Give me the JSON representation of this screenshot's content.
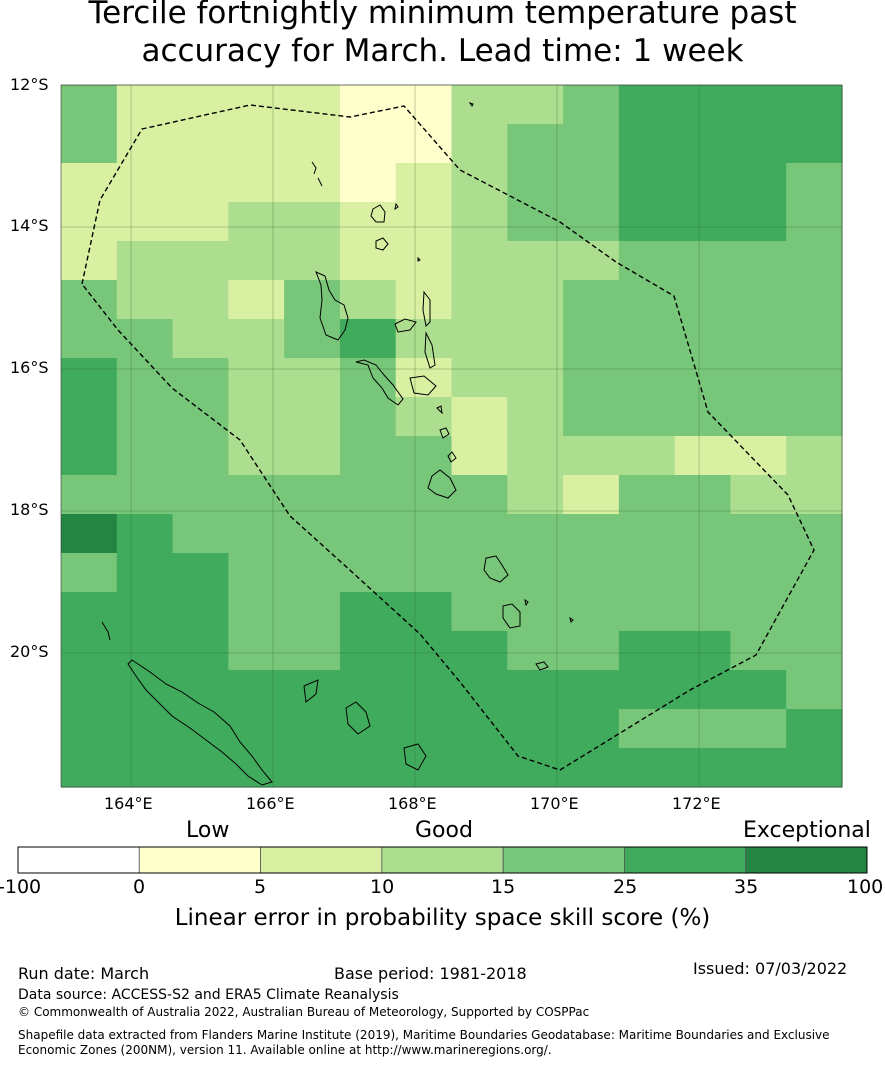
{
  "title_line1": "Tercile fortnightly minimum temperature past",
  "title_line2": "accuracy for March. Lead time: 1 week",
  "map": {
    "lat_labels": [
      "12°S",
      "14°S",
      "16°S",
      "18°S",
      "20°S"
    ],
    "lon_labels": [
      "164°E",
      "166°E",
      "168°E",
      "170°E",
      "172°E"
    ],
    "boundary": "dashed EEZ outline",
    "grid": true
  },
  "colorbar": {
    "categories": [
      "Low",
      "Good",
      "Exceptional"
    ],
    "ticks": [
      "-100",
      "0",
      "5",
      "10",
      "15",
      "25",
      "35",
      "100"
    ],
    "colors": [
      "#ffffff",
      "#ffffcc",
      "#d9f0a3",
      "#addd8e",
      "#78c679",
      "#41ab5d",
      "#238443"
    ],
    "label": "Linear error in probability space skill score (%)"
  },
  "footer": {
    "run_date": "Run date: March",
    "base_period": "Base period: 1981-2018",
    "issued": "Issued: 07/03/2022",
    "data_source": "Data source: ACCESS-S2 and ERA5 Climate Reanalysis",
    "copyright": "© Commonwealth of Australia 2022, Australian Bureau of Meteorology, Supported by COSPPac",
    "shapefile_line1": "Shapefile data extracted from Flanders Marine Institute (2019), Maritime Boundaries Geodatabase: Maritime Boundaries and Exclusive",
    "shapefile_line2": "Economic Zones (200NM), version 11. Available online at http://www.marineregions.org/."
  }
}
